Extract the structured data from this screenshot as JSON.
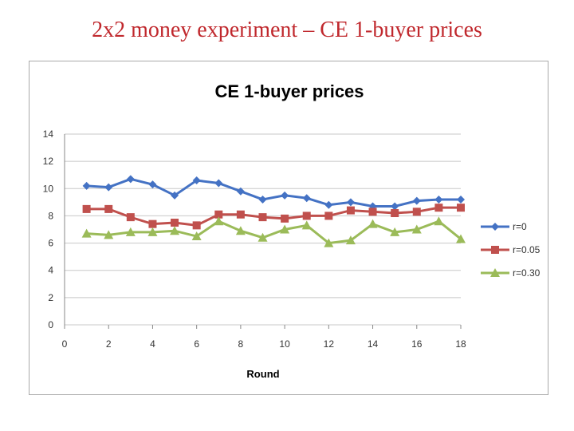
{
  "slide": {
    "title": "2x2 money experiment – CE 1-buyer prices"
  },
  "chart_data": {
    "type": "line",
    "title": "CE 1-buyer prices",
    "xlabel": "Round",
    "ylabel": "",
    "xlim": [
      0,
      18
    ],
    "ylim": [
      0,
      14
    ],
    "xticks": [
      0,
      2,
      4,
      6,
      8,
      10,
      12,
      14,
      16,
      18
    ],
    "yticks": [
      0,
      2,
      4,
      6,
      8,
      10,
      12,
      14
    ],
    "grid": "horizontal",
    "legend_position": "right",
    "x": [
      1,
      2,
      3,
      4,
      5,
      6,
      7,
      8,
      9,
      10,
      11,
      12,
      13,
      14,
      15,
      16,
      17,
      18
    ],
    "series": [
      {
        "name": "r=0",
        "color": "#4472c4",
        "marker": "diamond",
        "values": [
          10.2,
          10.1,
          10.7,
          10.3,
          9.5,
          10.6,
          10.4,
          9.8,
          9.2,
          9.5,
          9.3,
          8.8,
          9.0,
          8.7,
          8.7,
          9.1,
          9.2,
          9.2
        ]
      },
      {
        "name": "r=0.05",
        "color": "#c0504d",
        "marker": "square",
        "values": [
          8.5,
          8.5,
          7.9,
          7.4,
          7.5,
          7.3,
          8.1,
          8.1,
          7.9,
          7.8,
          8.0,
          8.0,
          8.4,
          8.3,
          8.2,
          8.3,
          8.6,
          8.6
        ]
      },
      {
        "name": "r=0.30",
        "color": "#9bbb59",
        "marker": "triangle",
        "values": [
          6.7,
          6.6,
          6.8,
          6.8,
          6.9,
          6.5,
          7.6,
          6.9,
          6.4,
          7.0,
          7.3,
          6.0,
          6.2,
          7.4,
          6.8,
          7.0,
          7.6,
          6.3
        ]
      }
    ]
  }
}
